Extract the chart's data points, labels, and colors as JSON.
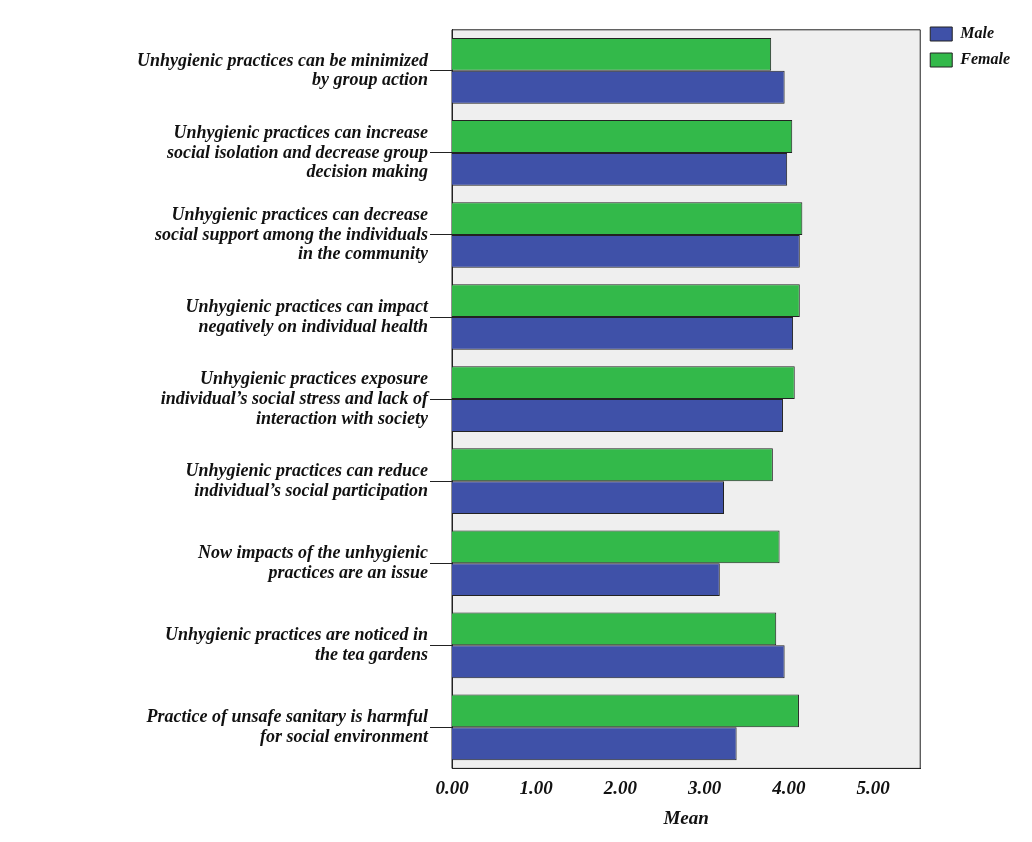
{
  "chart_data": {
    "type": "bar",
    "orientation": "horizontal",
    "xlabel": "Mean",
    "categories": [
      "Unhygienic practices can be minimized by group action",
      "Unhygienic practices can increase social isolation and decrease group decision making",
      "Unhygienic practices can decrease social support among the individuals in the community",
      "Unhygienic practices can impact negatively on individual health",
      "Unhygienic practices exposure individual’s social stress and lack of interaction with society",
      "Unhygienic practices can reduce individual’s social participation",
      "Now impacts of the unhygienic practices are an issue",
      "Unhygienic practices are noticed in the tea gardens",
      "Practice of unsafe sanitary is harmful for social environment"
    ],
    "series": [
      {
        "name": "Male",
        "color": "#3f51a8",
        "values": [
          3.95,
          3.98,
          4.13,
          4.05,
          3.93,
          3.23,
          3.18,
          3.95,
          3.38
        ]
      },
      {
        "name": "Female",
        "color": "#33b94a",
        "values": [
          3.79,
          4.04,
          4.16,
          4.13,
          4.07,
          3.81,
          3.89,
          3.85,
          4.12
        ]
      }
    ],
    "xlim": [
      0,
      5.56
    ],
    "xticks": [
      {
        "value": 0,
        "label": "0.00"
      },
      {
        "value": 1,
        "label": "1.00"
      },
      {
        "value": 2,
        "label": "2.00"
      },
      {
        "value": 3,
        "label": "3.00"
      },
      {
        "value": 4,
        "label": "4.00"
      },
      {
        "value": 5,
        "label": "5.00"
      }
    ],
    "grid": false,
    "legend": "top right"
  }
}
